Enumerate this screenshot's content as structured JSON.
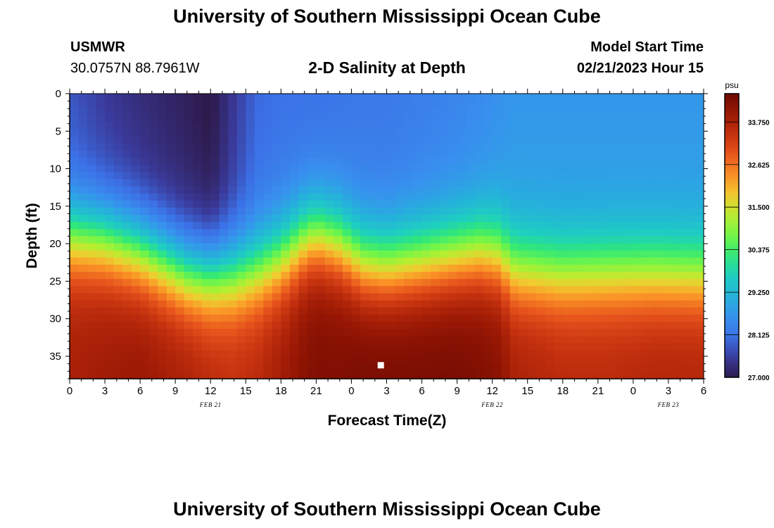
{
  "header": {
    "title": "University of Southern Mississippi Ocean Cube",
    "station_id": "USMWR",
    "coordinates": "30.0757N  88.7961W",
    "subtitle": "2-D Salinity at Depth",
    "model_start_label": "Model Start Time",
    "model_start_value": "02/21/2023 Hour 15"
  },
  "footer": {
    "title": "University of Southern Mississippi Ocean Cube"
  },
  "chart_data": {
    "type": "heatmap",
    "xlabel": "Forecast Time(Z)",
    "ylabel": "Depth (ft)",
    "x_tick_labels": [
      "0",
      "3",
      "6",
      "9",
      "12",
      "15",
      "18",
      "21",
      "0",
      "3",
      "6",
      "9",
      "12",
      "15",
      "18",
      "21",
      "0",
      "3",
      "6"
    ],
    "date_labels": [
      {
        "text": "FEB 21",
        "hour": 12
      },
      {
        "text": "FEB 22",
        "hour": 36
      },
      {
        "text": "FEB 23",
        "hour": 51
      }
    ],
    "x_range_hours": [
      0,
      54
    ],
    "ylim": [
      0,
      38
    ],
    "y_ticks": [
      0,
      5,
      10,
      15,
      20,
      25,
      30,
      35
    ],
    "colorbar": {
      "unit": "psu",
      "min": 27.0,
      "max": 34.5,
      "tick_labels": [
        "27.000",
        "28.125",
        "29.250",
        "30.375",
        "31.500",
        "32.625",
        "33.750"
      ],
      "tick_values": [
        27.0,
        28.125,
        29.25,
        30.375,
        31.5,
        32.625,
        33.75
      ]
    },
    "marker": {
      "hour": 26.5,
      "depth": 36.2
    },
    "profile_keyframes": [
      {
        "hour": 0,
        "mid": 19.0,
        "s_top": 27.9,
        "s_bot": 33.8
      },
      {
        "hour": 3,
        "mid": 19.5,
        "s_top": 27.6,
        "s_bot": 33.9
      },
      {
        "hour": 6,
        "mid": 21.0,
        "s_top": 27.4,
        "s_bot": 34.0
      },
      {
        "hour": 8,
        "mid": 22.5,
        "s_top": 27.3,
        "s_bot": 33.9
      },
      {
        "hour": 10,
        "mid": 24.0,
        "s_top": 27.2,
        "s_bot": 33.8
      },
      {
        "hour": 12,
        "mid": 24.5,
        "s_top": 27.05,
        "s_bot": 33.6
      },
      {
        "hour": 14,
        "mid": 24.3,
        "s_top": 27.6,
        "s_bot": 33.5
      },
      {
        "hour": 16,
        "mid": 23.5,
        "s_top": 28.1,
        "s_bot": 33.6
      },
      {
        "hour": 18,
        "mid": 22.0,
        "s_top": 28.2,
        "s_bot": 33.9
      },
      {
        "hour": 20,
        "mid": 19.5,
        "s_top": 28.2,
        "s_bot": 34.2
      },
      {
        "hour": 21,
        "mid": 18.8,
        "s_top": 28.2,
        "s_bot": 34.3
      },
      {
        "hour": 23,
        "mid": 20.0,
        "s_top": 28.25,
        "s_bot": 34.3
      },
      {
        "hour": 25,
        "mid": 22.5,
        "s_top": 28.3,
        "s_bot": 34.4
      },
      {
        "hour": 27,
        "mid": 23.0,
        "s_top": 28.3,
        "s_bot": 34.4
      },
      {
        "hour": 30,
        "mid": 22.3,
        "s_top": 28.4,
        "s_bot": 34.4
      },
      {
        "hour": 33,
        "mid": 21.5,
        "s_top": 28.5,
        "s_bot": 34.4
      },
      {
        "hour": 35,
        "mid": 21.0,
        "s_top": 28.6,
        "s_bot": 34.3
      },
      {
        "hour": 36.5,
        "mid": 21.5,
        "s_top": 28.7,
        "s_bot": 34.2
      },
      {
        "hour": 38,
        "mid": 23.5,
        "s_top": 28.8,
        "s_bot": 33.8
      },
      {
        "hour": 42,
        "mid": 24.0,
        "s_top": 28.8,
        "s_bot": 33.6
      },
      {
        "hour": 46,
        "mid": 23.8,
        "s_top": 28.8,
        "s_bot": 33.6
      },
      {
        "hour": 50,
        "mid": 23.8,
        "s_top": 28.8,
        "s_bot": 33.7
      },
      {
        "hour": 54,
        "mid": 24.0,
        "s_top": 28.8,
        "s_bot": 33.7
      }
    ],
    "colormap": [
      [
        0.0,
        "#2e1b4e"
      ],
      [
        0.07,
        "#3a3a9a"
      ],
      [
        0.14,
        "#3c70e6"
      ],
      [
        0.21,
        "#3890ee"
      ],
      [
        0.28,
        "#26b0dc"
      ],
      [
        0.36,
        "#1ecfc0"
      ],
      [
        0.43,
        "#30e878"
      ],
      [
        0.5,
        "#74f548"
      ],
      [
        0.57,
        "#b8ee30"
      ],
      [
        0.64,
        "#f0cc30"
      ],
      [
        0.71,
        "#fb9226"
      ],
      [
        0.79,
        "#e6521c"
      ],
      [
        0.86,
        "#c2300e"
      ],
      [
        0.93,
        "#9a1804"
      ],
      [
        1.0,
        "#6e0a02"
      ]
    ]
  }
}
